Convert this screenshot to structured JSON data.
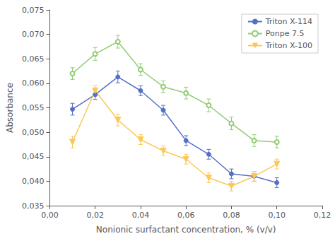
{
  "chart_data": {
    "type": "line",
    "xlabel": "Nonionic surfactant concentration, % (v/v)",
    "ylabel": "Absorbance",
    "x": [
      0.01,
      0.02,
      0.03,
      0.04,
      0.05,
      0.06,
      0.07,
      0.08,
      0.09,
      0.1
    ],
    "series": [
      {
        "name": "Triton X-114",
        "marker": "circle",
        "values": [
          0.0547,
          0.0577,
          0.0613,
          0.0585,
          0.0545,
          0.0483,
          0.0455,
          0.0415,
          0.041,
          0.0397
        ],
        "errors": [
          0.0012,
          0.001,
          0.0012,
          0.001,
          0.001,
          0.001,
          0.001,
          0.001,
          0.001,
          0.001
        ]
      },
      {
        "name": "Ponpe 7.5",
        "marker": "open_circle",
        "values": [
          0.062,
          0.066,
          0.0685,
          0.0628,
          0.0593,
          0.058,
          0.0555,
          0.0518,
          0.0483,
          0.048
        ],
        "errors": [
          0.0012,
          0.0013,
          0.0013,
          0.0012,
          0.0012,
          0.0012,
          0.0013,
          0.0013,
          0.0012,
          0.0012
        ]
      },
      {
        "name": "Triton X-100",
        "marker": "triangle_down",
        "values": [
          0.048,
          0.0585,
          0.0525,
          0.0485,
          0.0462,
          0.0445,
          0.0407,
          0.039,
          0.041,
          0.0435
        ],
        "errors": [
          0.0012,
          0.001,
          0.0012,
          0.001,
          0.001,
          0.001,
          0.001,
          0.001,
          0.001,
          0.001
        ]
      }
    ],
    "xlim": [
      0.0,
      0.12
    ],
    "ylim": [
      0.035,
      0.075
    ],
    "xticks": [
      {
        "value": 0.0,
        "label": "0,00"
      },
      {
        "value": 0.02,
        "label": "0,02"
      },
      {
        "value": 0.04,
        "label": "0,04"
      },
      {
        "value": 0.06,
        "label": "0,06"
      },
      {
        "value": 0.08,
        "label": "0,08"
      },
      {
        "value": 0.1,
        "label": "0,10"
      },
      {
        "value": 0.12,
        "label": "0,12"
      }
    ],
    "yticks": [
      {
        "value": 0.035,
        "label": "0,035"
      },
      {
        "value": 0.04,
        "label": "0,040"
      },
      {
        "value": 0.045,
        "label": "0,045"
      },
      {
        "value": 0.05,
        "label": "0,050"
      },
      {
        "value": 0.055,
        "label": "0,055"
      },
      {
        "value": 0.06,
        "label": "0,060"
      },
      {
        "value": 0.065,
        "label": "0,065"
      },
      {
        "value": 0.07,
        "label": "0,070"
      },
      {
        "value": 0.075,
        "label": "0,075"
      }
    ],
    "grid": false,
    "legend": "upper right"
  }
}
